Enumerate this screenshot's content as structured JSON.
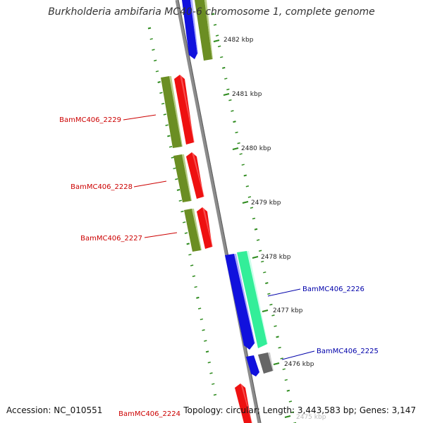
{
  "title": "Burkholderia ambifaria MC40-6 chromosome 1, complete genome",
  "footer": {
    "accession": "Accession: NC_010551",
    "summary": "Topology: circular; Length: 3,443,583 bp; Genes: 3,147"
  },
  "colors": {
    "backbone": "#8c8c8c",
    "tick": "#2e8b1e",
    "label_reverse": "#cc0000",
    "label_forward": "#0000aa",
    "olive": "#6b8e23",
    "red": "#ee1111",
    "blue": "#1111dd",
    "aqua": "#33ee99",
    "gray": "#666666"
  },
  "scale": {
    "unit": "kbp",
    "ticks": [
      {
        "label": "2482 kbp",
        "value": 2482
      },
      {
        "label": "2481 kbp",
        "value": 2481
      },
      {
        "label": "2480 kbp",
        "value": 2480
      },
      {
        "label": "2479 kbp",
        "value": 2479
      },
      {
        "label": "2478 kbp",
        "value": 2478
      },
      {
        "label": "2477 kbp",
        "value": 2477
      },
      {
        "label": "2476 kbp",
        "value": 2476
      },
      {
        "label": "2475 kbp",
        "value": 2475
      }
    ]
  },
  "genes": [
    {
      "label": "BamMC406_2229",
      "strand": "reverse",
      "kbp_start": 2481.2,
      "kbp_end": 2480.1
    },
    {
      "label": "BamMC406_2228",
      "strand": "reverse",
      "kbp_start": 2480.0,
      "kbp_end": 2479.2
    },
    {
      "label": "BamMC406_2227",
      "strand": "reverse",
      "kbp_start": 2479.1,
      "kbp_end": 2478.3
    },
    {
      "label": "BamMC406_2226",
      "strand": "forward",
      "kbp_start": 2478.0,
      "kbp_end": 2476.3
    },
    {
      "label": "BamMC406_2225",
      "strand": "forward",
      "kbp_start": 2476.1,
      "kbp_end": 2475.8
    },
    {
      "label": "BamMC406_2224",
      "strand": "reverse",
      "kbp_start": 2475.6,
      "kbp_end": 2475.0
    }
  ],
  "unlabeled_features": [
    {
      "color": "blue",
      "strand": "forward",
      "kbp_start": 2482.6,
      "kbp_end": 2481.8
    },
    {
      "color": "olive",
      "strand": "forward",
      "kbp_start": 2482.6,
      "kbp_end": 2481.9
    }
  ]
}
